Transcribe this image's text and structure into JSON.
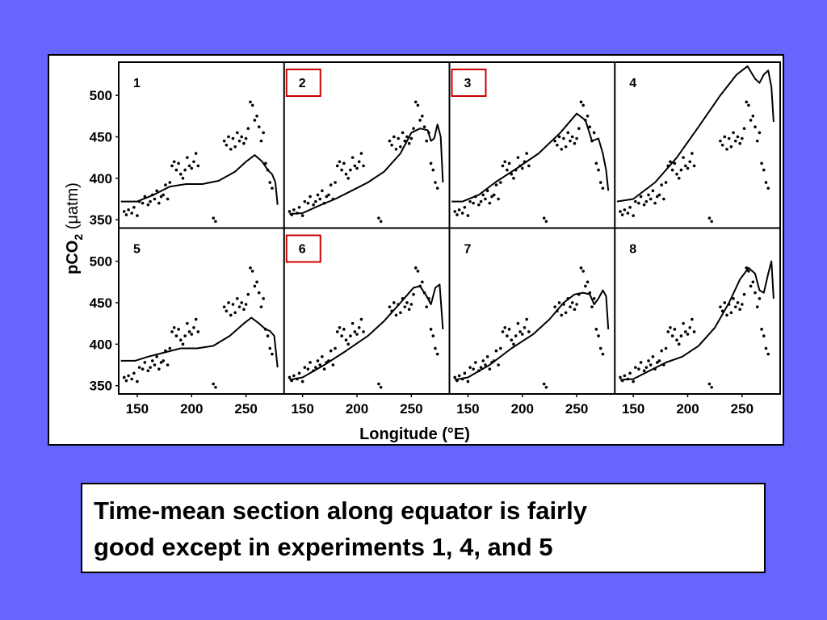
{
  "chart_data": {
    "type": "scatter",
    "layout": "2x4 small multiples",
    "xlabel": "Longitude (°E)",
    "ylabel_parts": {
      "main": "pCO",
      "sub": "2",
      "unit": "(μatm)"
    },
    "xlim": [
      133,
      285
    ],
    "ylim": [
      340,
      540
    ],
    "xticks": [
      150,
      200,
      250
    ],
    "yticks": [
      350,
      400,
      450,
      500
    ],
    "highlight_color": "#cc0000",
    "observations": {
      "name": "",
      "x": [
        138,
        140,
        142,
        145,
        147,
        150,
        152,
        155,
        157,
        160,
        162,
        164,
        166,
        168,
        170,
        172,
        174,
        176,
        178,
        180,
        182,
        184,
        186,
        188,
        190,
        192,
        194,
        196,
        198,
        200,
        202,
        204,
        206,
        220,
        222,
        230,
        232,
        234,
        236,
        238,
        240,
        242,
        244,
        246,
        248,
        250,
        252,
        254,
        256,
        258,
        260,
        262,
        264,
        266,
        268,
        270,
        272,
        274
      ],
      "y": [
        360,
        356,
        362,
        358,
        365,
        355,
        372,
        370,
        378,
        368,
        372,
        380,
        375,
        385,
        370,
        378,
        380,
        392,
        375,
        395,
        415,
        420,
        410,
        418,
        405,
        400,
        410,
        425,
        415,
        412,
        420,
        430,
        415,
        352,
        348,
        445,
        440,
        450,
        435,
        448,
        438,
        455,
        445,
        450,
        442,
        448,
        460,
        492,
        488,
        470,
        475,
        462,
        445,
        455,
        418,
        410,
        395,
        388
      ]
    },
    "panels": [
      {
        "label": "1",
        "highlighted": false,
        "model_x": [
          135,
          150,
          165,
          180,
          195,
          210,
          225,
          240,
          250,
          258,
          265,
          270,
          274,
          277,
          279
        ],
        "model_y": [
          372,
          372,
          380,
          390,
          393,
          393,
          397,
          408,
          420,
          428,
          420,
          410,
          405,
          395,
          368
        ]
      },
      {
        "label": "2",
        "highlighted": true,
        "model_x": [
          138,
          150,
          165,
          180,
          195,
          210,
          225,
          240,
          250,
          258,
          265,
          268,
          271,
          274,
          277,
          279
        ],
        "model_y": [
          357,
          358,
          367,
          375,
          385,
          395,
          408,
          430,
          455,
          460,
          458,
          445,
          448,
          465,
          450,
          395
        ]
      },
      {
        "label": "3",
        "highlighted": true,
        "model_x": [
          135,
          145,
          160,
          175,
          195,
          215,
          235,
          250,
          258,
          264,
          270,
          274,
          277,
          279
        ],
        "model_y": [
          372,
          372,
          380,
          395,
          412,
          430,
          455,
          478,
          470,
          445,
          448,
          430,
          410,
          385
        ]
      },
      {
        "label": "4",
        "highlighted": false,
        "model_x": [
          135,
          150,
          170,
          190,
          210,
          230,
          245,
          255,
          262,
          266,
          270,
          274,
          277,
          279
        ],
        "model_y": [
          372,
          375,
          395,
          425,
          462,
          500,
          525,
          535,
          520,
          515,
          525,
          530,
          510,
          468
        ]
      },
      {
        "label": "5",
        "highlighted": false,
        "model_x": [
          135,
          148,
          160,
          175,
          190,
          205,
          220,
          235,
          248,
          255,
          262,
          268,
          272,
          276,
          279
        ],
        "model_y": [
          380,
          380,
          385,
          390,
          395,
          395,
          398,
          410,
          425,
          432,
          425,
          418,
          416,
          410,
          372
        ]
      },
      {
        "label": "6",
        "highlighted": true,
        "model_x": [
          138,
          150,
          170,
          190,
          210,
          225,
          240,
          252,
          258,
          264,
          268,
          272,
          276,
          279
        ],
        "model_y": [
          357,
          360,
          375,
          392,
          410,
          428,
          450,
          468,
          470,
          458,
          448,
          468,
          472,
          418
        ]
      },
      {
        "label": "7",
        "highlighted": false,
        "model_x": [
          138,
          150,
          170,
          190,
          210,
          225,
          238,
          248,
          256,
          262,
          266,
          270,
          274,
          277,
          279
        ],
        "model_y": [
          357,
          360,
          375,
          395,
          412,
          430,
          450,
          460,
          462,
          460,
          448,
          455,
          465,
          458,
          418
        ]
      },
      {
        "label": "8",
        "highlighted": false,
        "model_x": [
          138,
          150,
          165,
          180,
          195,
          210,
          225,
          238,
          248,
          256,
          262,
          266,
          270,
          274,
          277,
          279
        ],
        "model_y": [
          357,
          358,
          368,
          378,
          385,
          398,
          420,
          450,
          478,
          492,
          485,
          465,
          462,
          485,
          500,
          455
        ]
      }
    ]
  },
  "caption": {
    "line1": "Time-mean section along equator is fairly",
    "line2": "good except in experiments 1, 4, and 5"
  }
}
